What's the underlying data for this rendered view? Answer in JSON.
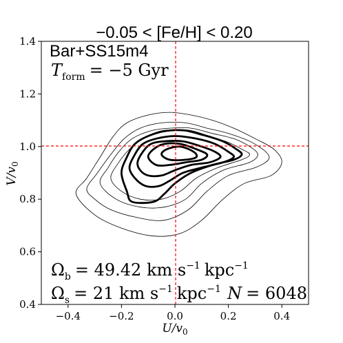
{
  "chart_data": {
    "type": "contour",
    "title": "−0.05 < [Fe/H] < 0.20",
    "xlabel": "U/v0",
    "ylabel": "V/v0",
    "xlim": [
      -0.5,
      0.5
    ],
    "ylim": [
      0.4,
      1.4
    ],
    "x_ticks": [
      "−0.4",
      "−0.2",
      "0.0",
      "0.2",
      "0.4"
    ],
    "x_tick_values": [
      -0.4,
      -0.2,
      0.0,
      0.2,
      0.4
    ],
    "y_ticks": [
      "0.4",
      "0.6",
      "0.8",
      "1.0",
      "1.2",
      "1.4"
    ],
    "y_tick_values": [
      0.4,
      0.6,
      0.8,
      1.0,
      1.2,
      1.4
    ],
    "grid": false,
    "reference_lines": {
      "x": 0.0,
      "y": 1.0,
      "color": "#ff0000",
      "style": "dashed"
    },
    "annotations": {
      "model": "Bar+SS15m4",
      "tform_label": "T",
      "tform_sub": "form",
      "tform_value": "= −5 Gyr",
      "omega_b_label": "Ω",
      "omega_b_sub": "b",
      "omega_b_value": "= 49.42 km s",
      "omega_b_unit": "kpc",
      "omega_s_label": "Ω",
      "omega_s_sub": "s",
      "omega_s_value": "= 21 km s",
      "omega_s_unit": "kpc",
      "exponent": "−1",
      "n_label": "N",
      "n_value": "= 6048"
    },
    "series": [
      {
        "level": 1,
        "width": 0.8,
        "points": [
          [
            -0.37,
            0.82
          ],
          [
            -0.33,
            0.88
          ],
          [
            -0.28,
            0.96
          ],
          [
            -0.23,
            1.04
          ],
          [
            -0.18,
            1.09
          ],
          [
            -0.1,
            1.12
          ],
          [
            -0.02,
            1.13
          ],
          [
            0.06,
            1.12
          ],
          [
            0.14,
            1.1
          ],
          [
            0.22,
            1.07
          ],
          [
            0.3,
            1.03
          ],
          [
            0.37,
            0.99
          ],
          [
            0.4,
            0.94
          ],
          [
            0.36,
            0.89
          ],
          [
            0.26,
            0.86
          ],
          [
            0.18,
            0.8
          ],
          [
            0.1,
            0.72
          ],
          [
            0.02,
            0.67
          ],
          [
            -0.08,
            0.66
          ],
          [
            -0.2,
            0.69
          ],
          [
            -0.3,
            0.74
          ],
          [
            -0.37,
            0.82
          ]
        ]
      },
      {
        "level": 2,
        "width": 0.8,
        "points": [
          [
            -0.33,
            0.84
          ],
          [
            -0.29,
            0.9
          ],
          [
            -0.24,
            0.97
          ],
          [
            -0.19,
            1.03
          ],
          [
            -0.13,
            1.07
          ],
          [
            -0.05,
            1.09
          ],
          [
            0.04,
            1.09
          ],
          [
            0.12,
            1.07
          ],
          [
            0.2,
            1.05
          ],
          [
            0.28,
            1.02
          ],
          [
            0.34,
            0.98
          ],
          [
            0.35,
            0.95
          ],
          [
            0.3,
            0.92
          ],
          [
            0.2,
            0.89
          ],
          [
            0.12,
            0.83
          ],
          [
            0.05,
            0.76
          ],
          [
            -0.04,
            0.72
          ],
          [
            -0.14,
            0.73
          ],
          [
            -0.24,
            0.76
          ],
          [
            -0.3,
            0.8
          ],
          [
            -0.33,
            0.84
          ]
        ]
      },
      {
        "level": 3,
        "width": 0.8,
        "points": [
          [
            -0.28,
            0.86
          ],
          [
            -0.25,
            0.92
          ],
          [
            -0.21,
            0.98
          ],
          [
            -0.16,
            1.03
          ],
          [
            -0.09,
            1.06
          ],
          [
            -0.02,
            1.07
          ],
          [
            0.06,
            1.07
          ],
          [
            0.14,
            1.05
          ],
          [
            0.22,
            1.03
          ],
          [
            0.28,
            1.0
          ],
          [
            0.31,
            0.97
          ],
          [
            0.28,
            0.94
          ],
          [
            0.18,
            0.91
          ],
          [
            0.1,
            0.86
          ],
          [
            0.04,
            0.8
          ],
          [
            -0.04,
            0.77
          ],
          [
            -0.13,
            0.77
          ],
          [
            -0.22,
            0.8
          ],
          [
            -0.28,
            0.86
          ]
        ]
      },
      {
        "level": 4,
        "width": 0.8,
        "points": [
          [
            -0.24,
            0.88
          ],
          [
            -0.21,
            0.94
          ],
          [
            -0.17,
            0.99
          ],
          [
            -0.12,
            1.03
          ],
          [
            -0.05,
            1.06
          ],
          [
            0.03,
            1.06
          ],
          [
            0.11,
            1.04
          ],
          [
            0.19,
            1.02
          ],
          [
            0.25,
            0.99
          ],
          [
            0.28,
            0.97
          ],
          [
            0.25,
            0.95
          ],
          [
            0.16,
            0.92
          ],
          [
            0.08,
            0.88
          ],
          [
            0.02,
            0.83
          ],
          [
            -0.05,
            0.8
          ],
          [
            -0.13,
            0.8
          ],
          [
            -0.2,
            0.83
          ],
          [
            -0.24,
            0.88
          ]
        ]
      },
      {
        "level": 5,
        "width": 2.8,
        "points": [
          [
            -0.2,
            0.9
          ],
          [
            -0.18,
            0.96
          ],
          [
            -0.15,
            1.01
          ],
          [
            -0.1,
            1.04
          ],
          [
            -0.03,
            1.06
          ],
          [
            0.05,
            1.06
          ],
          [
            0.12,
            1.04
          ],
          [
            0.18,
            1.02
          ],
          [
            0.23,
            0.99
          ],
          [
            0.25,
            0.97
          ],
          [
            0.22,
            0.95
          ],
          [
            0.14,
            0.93
          ],
          [
            0.06,
            0.9
          ],
          [
            0.0,
            0.86
          ],
          [
            -0.04,
            0.82
          ],
          [
            -0.08,
            0.79
          ],
          [
            -0.16,
            0.79
          ],
          [
            -0.18,
            0.83
          ],
          [
            -0.2,
            0.9
          ]
        ]
      },
      {
        "level": 6,
        "width": 2.8,
        "points": [
          [
            -0.17,
            0.92
          ],
          [
            -0.15,
            0.97
          ],
          [
            -0.12,
            1.01
          ],
          [
            -0.07,
            1.03
          ],
          [
            0.0,
            1.04
          ],
          [
            0.08,
            1.03
          ],
          [
            0.15,
            1.01
          ],
          [
            0.2,
            0.98
          ],
          [
            0.22,
            0.96
          ],
          [
            0.18,
            0.94
          ],
          [
            0.1,
            0.92
          ],
          [
            0.03,
            0.9
          ],
          [
            -0.02,
            0.87
          ],
          [
            -0.06,
            0.85
          ],
          [
            -0.11,
            0.85
          ],
          [
            -0.15,
            0.88
          ],
          [
            -0.17,
            0.92
          ]
        ]
      },
      {
        "level": 7,
        "width": 2.8,
        "points": [
          [
            -0.14,
            0.94
          ],
          [
            -0.12,
            0.98
          ],
          [
            -0.09,
            1.01
          ],
          [
            -0.04,
            1.02
          ],
          [
            0.03,
            1.02
          ],
          [
            0.1,
            1.0
          ],
          [
            0.15,
            0.98
          ],
          [
            0.17,
            0.96
          ],
          [
            0.13,
            0.94
          ],
          [
            0.06,
            0.93
          ],
          [
            0.0,
            0.91
          ],
          [
            -0.05,
            0.89
          ],
          [
            -0.1,
            0.89
          ],
          [
            -0.13,
            0.91
          ],
          [
            -0.14,
            0.94
          ]
        ]
      },
      {
        "level": 8,
        "width": 2.8,
        "points": [
          [
            -0.1,
            0.96
          ],
          [
            -0.08,
            0.99
          ],
          [
            -0.04,
            1.01
          ],
          [
            0.02,
            1.01
          ],
          [
            0.08,
            0.99
          ],
          [
            0.12,
            0.97
          ],
          [
            0.1,
            0.95
          ],
          [
            0.04,
            0.94
          ],
          [
            -0.02,
            0.93
          ],
          [
            -0.07,
            0.93
          ],
          [
            -0.1,
            0.96
          ]
        ]
      },
      {
        "level": 9,
        "width": 2.8,
        "points": [
          [
            -0.05,
            0.97
          ],
          [
            -0.03,
            0.99
          ],
          [
            0.02,
            1.0
          ],
          [
            0.07,
            0.98
          ],
          [
            0.08,
            0.96
          ],
          [
            0.04,
            0.95
          ],
          [
            -0.02,
            0.95
          ],
          [
            -0.05,
            0.97
          ]
        ]
      }
    ]
  }
}
